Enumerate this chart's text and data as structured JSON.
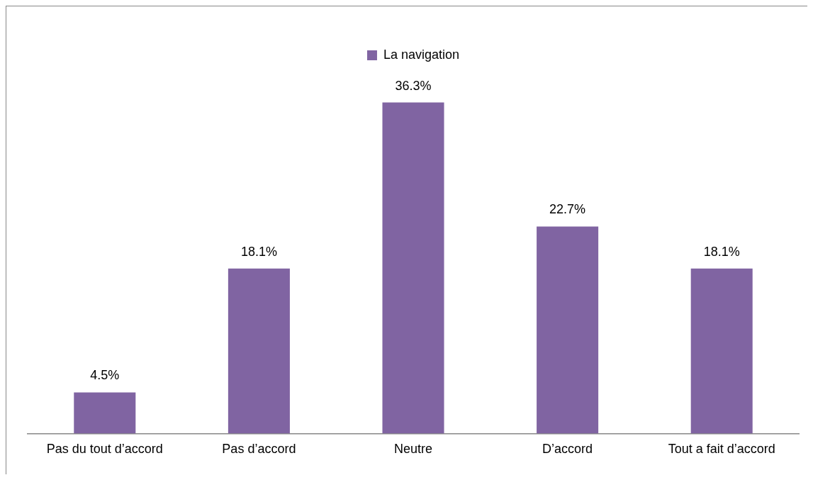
{
  "chart_data": {
    "type": "bar",
    "categories": [
      "Pas du tout d’accord",
      "Pas d’accord",
      "Neutre",
      "D’accord",
      "Tout a fait d’accord"
    ],
    "series": [
      {
        "name": "La navigation",
        "color": "#8064a2",
        "values": [
          4.5,
          18.1,
          36.3,
          22.7,
          18.1
        ],
        "value_labels": [
          "4.5%",
          "18.1%",
          "36.3%",
          "22.7%",
          "18.1%"
        ]
      }
    ],
    "legend": "top"
  }
}
